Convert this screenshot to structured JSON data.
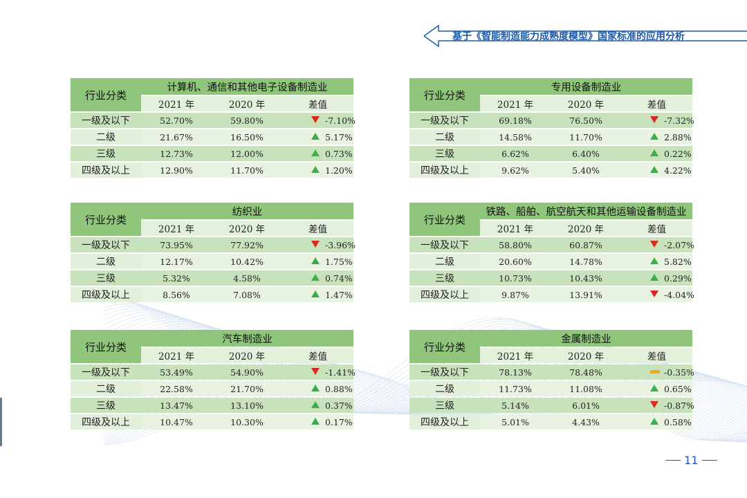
{
  "header": {
    "title": "基于《智能制造能力成熟度模型》国家标准的应用分析"
  },
  "page_number": "11",
  "colors": {
    "header_green": "#8fc67b",
    "up": "#3bb04a",
    "down": "#d62b22",
    "flat": "#f5a623",
    "accent_blue": "#1e5aa8"
  },
  "tables": [
    {
      "corner": "行业分类",
      "industry": "计算机、通信和其他电子设备制造业",
      "col2021": "2021 年",
      "col2020": "2020 年",
      "coldiff": "差值",
      "rows": [
        {
          "label": "一级及以下",
          "v2021": "52.70%",
          "v2020": "59.80%",
          "diff": "-7.10%",
          "trend": "down"
        },
        {
          "label": "二级",
          "v2021": "21.67%",
          "v2020": "16.50%",
          "diff": "5.17%",
          "trend": "up"
        },
        {
          "label": "三级",
          "v2021": "12.73%",
          "v2020": "12.00%",
          "diff": "0.73%",
          "trend": "up"
        },
        {
          "label": "四级及以上",
          "v2021": "12.90%",
          "v2020": "11.70%",
          "diff": "1.20%",
          "trend": "up"
        }
      ]
    },
    {
      "corner": "行业分类",
      "industry": "专用设备制造业",
      "col2021": "2021 年",
      "col2020": "2020 年",
      "coldiff": "差值",
      "rows": [
        {
          "label": "一级及以下",
          "v2021": "69.18%",
          "v2020": "76.50%",
          "diff": "-7.32%",
          "trend": "down"
        },
        {
          "label": "二级",
          "v2021": "14.58%",
          "v2020": "11.70%",
          "diff": "2.88%",
          "trend": "up"
        },
        {
          "label": "三级",
          "v2021": "6.62%",
          "v2020": "6.40%",
          "diff": "0.22%",
          "trend": "up"
        },
        {
          "label": "四级及以上",
          "v2021": "9.62%",
          "v2020": "5.40%",
          "diff": "4.22%",
          "trend": "up"
        }
      ]
    },
    {
      "corner": "行业分类",
      "industry": "纺织业",
      "col2021": "2021 年",
      "col2020": "2020 年",
      "coldiff": "差值",
      "rows": [
        {
          "label": "一级及以下",
          "v2021": "73.95%",
          "v2020": "77.92%",
          "diff": "-3.96%",
          "trend": "down"
        },
        {
          "label": "二级",
          "v2021": "12.17%",
          "v2020": "10.42%",
          "diff": "1.75%",
          "trend": "up"
        },
        {
          "label": "三级",
          "v2021": "5.32%",
          "v2020": "4.58%",
          "diff": "0.74%",
          "trend": "up"
        },
        {
          "label": "四级及以上",
          "v2021": "8.56%",
          "v2020": "7.08%",
          "diff": "1.47%",
          "trend": "up"
        }
      ]
    },
    {
      "corner": "行业分类",
      "industry": "铁路、船舶、航空航天和其他运输设备制造业",
      "col2021": "2021 年",
      "col2020": "2020 年",
      "coldiff": "差值",
      "rows": [
        {
          "label": "一级及以下",
          "v2021": "58.80%",
          "v2020": "60.87%",
          "diff": "-2.07%",
          "trend": "down"
        },
        {
          "label": "二级",
          "v2021": "20.60%",
          "v2020": "14.78%",
          "diff": "5.82%",
          "trend": "up"
        },
        {
          "label": "三级",
          "v2021": "10.73%",
          "v2020": "10.43%",
          "diff": "0.29%",
          "trend": "up"
        },
        {
          "label": "四级及以上",
          "v2021": "9.87%",
          "v2020": "13.91%",
          "diff": "-4.04%",
          "trend": "down"
        }
      ]
    },
    {
      "corner": "行业分类",
      "industry": "汽车制造业",
      "col2021": "2021 年",
      "col2020": "2020 年",
      "coldiff": "差值",
      "rows": [
        {
          "label": "一级及以下",
          "v2021": "53.49%",
          "v2020": "54.90%",
          "diff": "-1.41%",
          "trend": "down"
        },
        {
          "label": "二级",
          "v2021": "22.58%",
          "v2020": "21.70%",
          "diff": "0.88%",
          "trend": "up"
        },
        {
          "label": "三级",
          "v2021": "13.47%",
          "v2020": "13.10%",
          "diff": "0.37%",
          "trend": "up"
        },
        {
          "label": "四级及以上",
          "v2021": "10.47%",
          "v2020": "10.30%",
          "diff": "0.17%",
          "trend": "up"
        }
      ]
    },
    {
      "corner": "行业分类",
      "industry": "金属制造业",
      "col2021": "2021 年",
      "col2020": "2020 年",
      "coldiff": "差值",
      "rows": [
        {
          "label": "一级及以下",
          "v2021": "78.13%",
          "v2020": "78.48%",
          "diff": "-0.35%",
          "trend": "flat"
        },
        {
          "label": "二级",
          "v2021": "11.73%",
          "v2020": "11.08%",
          "diff": "0.65%",
          "trend": "up"
        },
        {
          "label": "三级",
          "v2021": "5.14%",
          "v2020": "6.01%",
          "diff": "-0.87%",
          "trend": "down"
        },
        {
          "label": "四级及以上",
          "v2021": "5.01%",
          "v2020": "4.43%",
          "diff": "0.58%",
          "trend": "up"
        }
      ]
    }
  ]
}
